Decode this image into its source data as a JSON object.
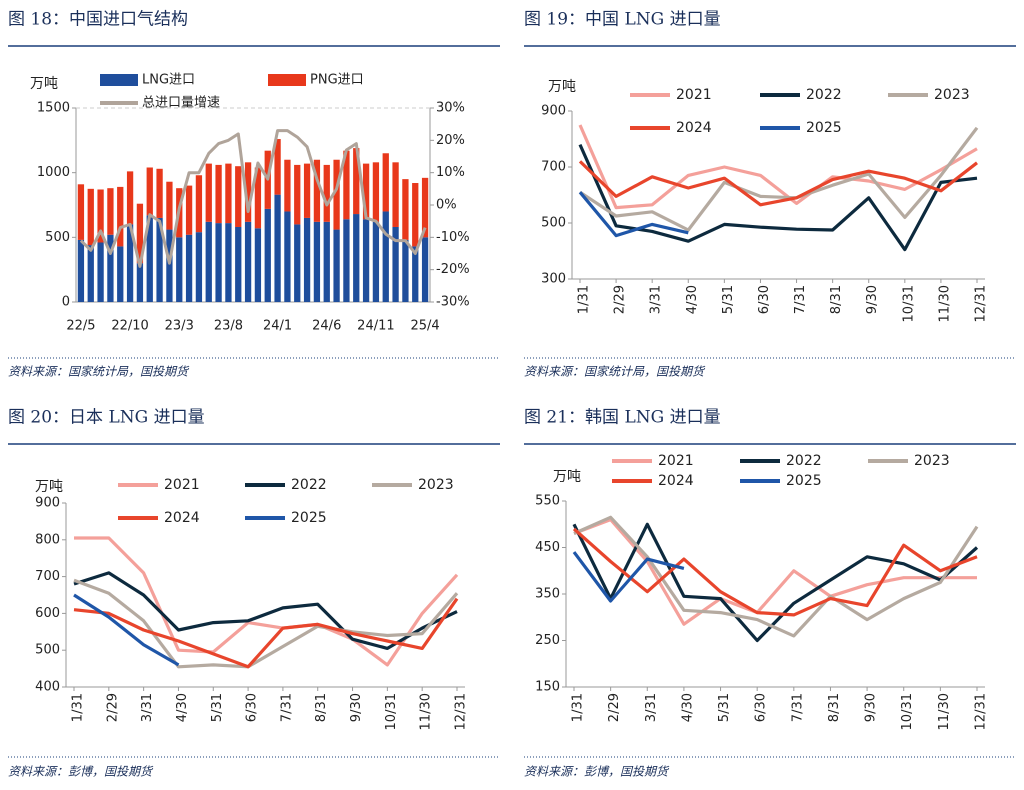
{
  "chart_data": [
    {
      "type": "bar",
      "title": "图 18：中国进口气结构",
      "y_label": "万吨",
      "stacked": true,
      "categories": [
        "22/5",
        null,
        null,
        null,
        null,
        "22/10",
        null,
        null,
        null,
        null,
        "23/3",
        null,
        null,
        null,
        null,
        "23/8",
        null,
        null,
        null,
        null,
        "24/1",
        null,
        null,
        null,
        null,
        "24/6",
        null,
        null,
        null,
        null,
        "24/11",
        null,
        null,
        null,
        null,
        "25/4"
      ],
      "series": [
        {
          "name": "LNG进口",
          "color": "#1f4e9c",
          "values": [
            480,
            440,
            460,
            520,
            430,
            600,
            300,
            670,
            650,
            560,
            500,
            520,
            540,
            620,
            610,
            610,
            580,
            620,
            570,
            720,
            830,
            700,
            600,
            650,
            620,
            620,
            560,
            640,
            680,
            640,
            620,
            700,
            580,
            480,
            430,
            500
          ]
        },
        {
          "name": "PNG进口",
          "color": "#e8381b",
          "values": [
            430,
            435,
            410,
            360,
            460,
            410,
            460,
            370,
            380,
            370,
            380,
            380,
            440,
            450,
            450,
            460,
            470,
            460,
            470,
            450,
            430,
            400,
            460,
            420,
            480,
            440,
            540,
            530,
            510,
            430,
            460,
            450,
            500,
            470,
            490,
            460
          ]
        },
        {
          "name": "总进口量增速",
          "color": "#b0a49a",
          "type": "line",
          "axis": "y2",
          "values": [
            -11,
            -14,
            -8,
            -15,
            -7,
            -6,
            -19,
            -3,
            -5,
            -18,
            -1,
            10,
            10,
            16,
            19,
            20,
            22,
            -2,
            13,
            8,
            23,
            23,
            21,
            18,
            8,
            0,
            5,
            17,
            19,
            -4,
            -5,
            -9,
            -11,
            -11,
            -15,
            -7
          ]
        }
      ],
      "ylim": [
        0,
        1500
      ],
      "yticks": [
        0,
        500,
        1000,
        1500
      ],
      "y2lim": [
        -30,
        30
      ],
      "y2ticks": [
        {
          "value": -30,
          "label": "-30%"
        },
        {
          "value": -20,
          "label": "-20%"
        },
        {
          "value": -10,
          "label": "-10%"
        },
        {
          "value": 0,
          "label": "0%"
        },
        {
          "value": 10,
          "label": "10%"
        },
        {
          "value": 20,
          "label": "20%"
        },
        {
          "value": 30,
          "label": "30%"
        }
      ],
      "source": "资料来源：国家统计局，国投期货"
    },
    {
      "type": "line",
      "title": "图 19：中国 LNG 进口量",
      "y_label": "万吨",
      "categories": [
        "1/31",
        "2/29",
        "3/31",
        "4/30",
        "5/31",
        "6/30",
        "7/31",
        "8/31",
        "9/30",
        "10/31",
        "11/30",
        "12/31"
      ],
      "series": [
        {
          "name": "2021",
          "color": "#f4a09a",
          "values": [
            850,
            555,
            565,
            670,
            700,
            670,
            570,
            665,
            650,
            620,
            690,
            765
          ]
        },
        {
          "name": "2022",
          "color": "#0d2a3e",
          "values": [
            780,
            490,
            470,
            435,
            495,
            485,
            478,
            475,
            590,
            405,
            645,
            660
          ]
        },
        {
          "name": "2023",
          "color": "#b5aaa0",
          "values": [
            610,
            525,
            540,
            475,
            645,
            595,
            590,
            635,
            675,
            520,
            670,
            840
          ]
        },
        {
          "name": "2024",
          "color": "#e8452c",
          "values": [
            720,
            595,
            665,
            625,
            660,
            565,
            590,
            655,
            685,
            660,
            615,
            715
          ]
        },
        {
          "name": "2025",
          "color": "#1f56a8",
          "values": [
            610,
            455,
            495,
            465,
            null,
            null,
            null,
            null,
            null,
            null,
            null,
            null
          ]
        }
      ],
      "ylim": [
        300,
        900
      ],
      "yticks": [
        300,
        500,
        700,
        900
      ],
      "source": "资料来源：国家统计局，国投期货"
    },
    {
      "type": "line",
      "title": "图 20：日本 LNG 进口量",
      "y_label": "万吨",
      "categories": [
        "1/31",
        "2/29",
        "3/31",
        "4/30",
        "5/31",
        "6/30",
        "7/31",
        "8/31",
        "9/30",
        "10/31",
        "11/30",
        "12/31"
      ],
      "series": [
        {
          "name": "2021",
          "color": "#f4a09a",
          "values": [
            805,
            805,
            710,
            500,
            495,
            575,
            560,
            570,
            530,
            460,
            600,
            705
          ]
        },
        {
          "name": "2022",
          "color": "#0d2a3e",
          "values": [
            680,
            710,
            650,
            555,
            575,
            580,
            615,
            625,
            530,
            505,
            560,
            605
          ]
        },
        {
          "name": "2023",
          "color": "#b5aaa0",
          "values": [
            690,
            655,
            580,
            455,
            460,
            455,
            510,
            565,
            550,
            540,
            545,
            655
          ]
        },
        {
          "name": "2024",
          "color": "#e8452c",
          "values": [
            610,
            600,
            555,
            525,
            490,
            455,
            560,
            570,
            545,
            525,
            505,
            640
          ]
        },
        {
          "name": "2025",
          "color": "#1f56a8",
          "values": [
            650,
            590,
            515,
            460,
            null,
            null,
            null,
            null,
            null,
            null,
            null,
            null
          ]
        }
      ],
      "ylim": [
        400,
        900
      ],
      "yticks": [
        400,
        500,
        600,
        700,
        800,
        900
      ],
      "source": "资料来源：彭博，国投期货"
    },
    {
      "type": "line",
      "title": "图 21：韩国 LNG 进口量",
      "y_label": "万吨",
      "categories": [
        "1/31",
        "2/29",
        "3/31",
        "4/30",
        "5/31",
        "6/30",
        "7/31",
        "8/31",
        "9/30",
        "10/31",
        "11/30",
        "12/31"
      ],
      "series": [
        {
          "name": "2021",
          "color": "#f4a09a",
          "values": [
            480,
            510,
            420,
            285,
            340,
            310,
            400,
            345,
            370,
            385,
            385,
            385
          ]
        },
        {
          "name": "2022",
          "color": "#0d2a3e",
          "values": [
            500,
            340,
            500,
            345,
            340,
            250,
            330,
            380,
            430,
            415,
            380,
            450
          ]
        },
        {
          "name": "2023",
          "color": "#b5aaa0",
          "values": [
            480,
            515,
            430,
            315,
            310,
            295,
            260,
            345,
            295,
            340,
            375,
            495
          ]
        },
        {
          "name": "2024",
          "color": "#e8452c",
          "values": [
            490,
            420,
            355,
            425,
            355,
            310,
            305,
            340,
            325,
            455,
            400,
            430
          ]
        },
        {
          "name": "2025",
          "color": "#1f56a8",
          "values": [
            440,
            335,
            425,
            405,
            null,
            null,
            null,
            null,
            null,
            null,
            null,
            null
          ]
        }
      ],
      "ylim": [
        150,
        550
      ],
      "yticks": [
        150,
        250,
        350,
        450,
        550
      ],
      "source": "资料来源：彭博，国投期货"
    }
  ]
}
